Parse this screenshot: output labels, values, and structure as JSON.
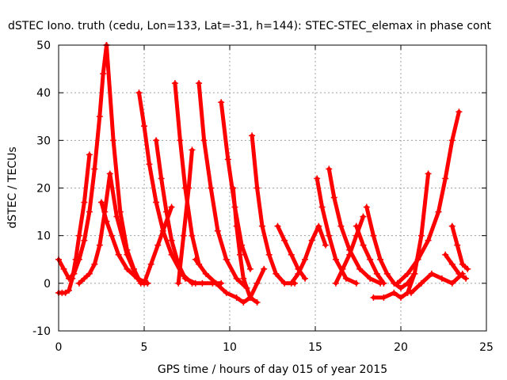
{
  "chart_data": {
    "type": "scatter",
    "title": "dSTEC Iono. truth (cedu, Lon=133, Lat=-31, h=144): STEC-STEC_elemax in phase cont",
    "xlabel": "GPS time / hours of day 015 of year 2015",
    "ylabel": "dSTEC  / TECUs",
    "xlim": [
      0,
      25
    ],
    "ylim": [
      -10,
      50
    ],
    "x_ticks": [
      "0",
      "5",
      "10",
      "15",
      "20",
      "25"
    ],
    "y_ticks": [
      "-10",
      "0",
      "10",
      "20",
      "30",
      "40",
      "50"
    ],
    "grid": true,
    "color": "#ff0000",
    "marker": "plus",
    "series": [
      {
        "x": [
          0.0,
          0.2,
          0.4,
          0.6,
          0.8,
          1.0,
          1.2,
          1.5,
          1.8
        ],
        "y": [
          -2,
          -2,
          -2,
          -1.5,
          1,
          5,
          10,
          17,
          27
        ]
      },
      {
        "x": [
          0.0,
          0.3,
          0.6,
          0.9,
          1.2,
          1.5,
          1.8,
          2.1,
          2.4,
          2.6,
          2.8
        ],
        "y": [
          5,
          3,
          1,
          2,
          5,
          9,
          15,
          24,
          35,
          44,
          50
        ]
      },
      {
        "x": [
          2.8,
          3.2,
          3.6,
          4.0,
          4.4,
          4.8,
          5.2
        ],
        "y": [
          50,
          30,
          15,
          7,
          3,
          0,
          0
        ]
      },
      {
        "x": [
          1.2,
          1.5,
          1.8,
          2.1,
          2.4,
          2.7,
          3.0,
          3.4,
          4.0,
          4.6
        ],
        "y": [
          0,
          1,
          2,
          4,
          8,
          15,
          23,
          14,
          6,
          1
        ]
      },
      {
        "x": [
          2.5,
          2.8,
          3.1,
          3.5,
          4.0,
          4.6,
          5.2
        ],
        "y": [
          17,
          13,
          10,
          6,
          3,
          1,
          0
        ]
      },
      {
        "x": [
          4.7,
          5.0,
          5.3,
          5.7,
          6.1,
          6.6,
          7.2,
          7.8,
          8.4,
          9.0,
          9.5
        ],
        "y": [
          40,
          33,
          25,
          17,
          11,
          6,
          2,
          0,
          0,
          0,
          0
        ]
      },
      {
        "x": [
          5.0,
          5.4,
          5.8,
          6.2,
          6.6
        ],
        "y": [
          0,
          4,
          8,
          12,
          16
        ]
      },
      {
        "x": [
          5.7,
          6.0,
          6.3,
          6.6,
          7.0,
          7.4,
          8.0
        ],
        "y": [
          30,
          22,
          15,
          9,
          4,
          1,
          0
        ]
      },
      {
        "x": [
          6.8,
          7.1,
          7.4,
          7.8,
          8.2
        ],
        "y": [
          42,
          30,
          20,
          10,
          4
        ]
      },
      {
        "x": [
          7.0,
          7.3,
          7.6,
          7.8
        ],
        "y": [
          0,
          10,
          20,
          28
        ]
      },
      {
        "x": [
          8.2,
          8.5,
          8.9,
          9.3,
          9.8,
          10.4,
          11.0
        ],
        "y": [
          42,
          30,
          20,
          11,
          5,
          1,
          -1
        ]
      },
      {
        "x": [
          9.5,
          9.9,
          10.3,
          10.7,
          11.2
        ],
        "y": [
          38,
          26,
          16,
          8,
          3
        ]
      },
      {
        "x": [
          10.2,
          10.4,
          10.6,
          10.8,
          11.2,
          11.6
        ],
        "y": [
          20,
          12,
          6,
          1,
          -3,
          -4
        ]
      },
      {
        "x": [
          11.3,
          11.6,
          11.9,
          12.3,
          12.7,
          13.2,
          13.8
        ],
        "y": [
          31,
          20,
          12,
          6,
          2,
          0,
          0
        ]
      },
      {
        "x": [
          8.0,
          8.6,
          9.2,
          9.8,
          10.4,
          10.8,
          11.2,
          11.6,
          12.0
        ],
        "y": [
          5,
          2,
          0,
          -2,
          -3,
          -4,
          -3,
          0,
          3
        ]
      },
      {
        "x": [
          12.8,
          13.2,
          13.6,
          14.0,
          14.4
        ],
        "y": [
          12,
          9,
          6,
          3,
          1
        ]
      },
      {
        "x": [
          13.6,
          14.0,
          14.4,
          14.8,
          15.2,
          15.6
        ],
        "y": [
          0,
          2,
          5,
          9,
          12,
          8
        ]
      },
      {
        "x": [
          15.1,
          15.4,
          15.8,
          16.2,
          16.8,
          17.4
        ],
        "y": [
          22,
          16,
          10,
          5,
          1,
          0
        ]
      },
      {
        "x": [
          15.8,
          16.1,
          16.5,
          17.0,
          17.6,
          18.2,
          18.8
        ],
        "y": [
          24,
          18,
          12,
          7,
          3,
          1,
          0
        ]
      },
      {
        "x": [
          16.2,
          16.6,
          17.0,
          17.4,
          17.8
        ],
        "y": [
          0,
          3,
          6,
          10,
          14
        ]
      },
      {
        "x": [
          17.4,
          17.8,
          18.2,
          18.6,
          19.0
        ],
        "y": [
          12,
          8,
          5,
          2,
          0
        ]
      },
      {
        "x": [
          18.0,
          18.4,
          18.8,
          19.2,
          19.6,
          20.0,
          20.4,
          20.8
        ],
        "y": [
          16,
          10,
          5,
          2,
          0,
          -1,
          0,
          2
        ]
      },
      {
        "x": [
          18.4,
          19.0,
          19.6,
          20.0,
          20.4,
          20.8,
          21.2,
          21.6
        ],
        "y": [
          -3,
          -3,
          -2,
          -3,
          -2,
          2,
          10,
          23
        ]
      },
      {
        "x": [
          19.8,
          20.4,
          21.0,
          21.6,
          22.2,
          22.6,
          23.0,
          23.4
        ],
        "y": [
          0,
          2,
          5,
          9,
          15,
          22,
          30,
          36
        ]
      },
      {
        "x": [
          20.6,
          21.2,
          21.8,
          22.4,
          23.0,
          23.6
        ],
        "y": [
          -2,
          0,
          2,
          1,
          0,
          2
        ]
      },
      {
        "x": [
          22.6,
          23.0,
          23.4,
          23.8
        ],
        "y": [
          6,
          4,
          2,
          1
        ]
      },
      {
        "x": [
          23.0,
          23.3,
          23.6,
          23.9
        ],
        "y": [
          12,
          8,
          4,
          3
        ]
      }
    ]
  }
}
